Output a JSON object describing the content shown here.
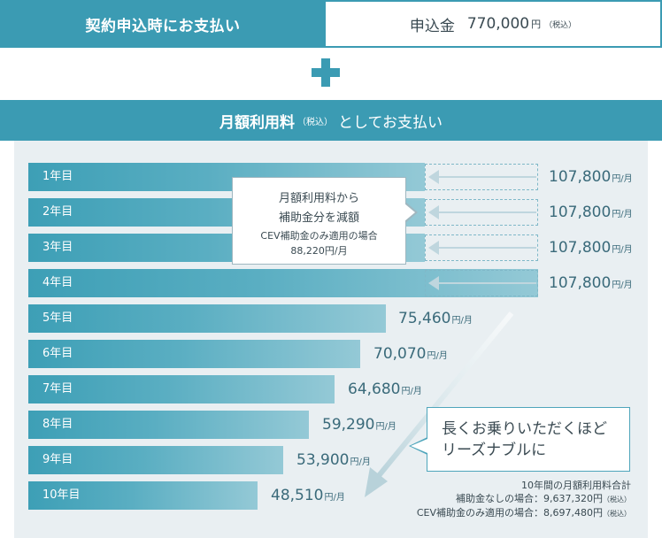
{
  "top": {
    "left_label": "契約申込時にお支払い",
    "right_label": "申込金",
    "right_amount": "770,000",
    "right_unit": "円",
    "right_tax": "（税込）"
  },
  "monthly": {
    "title_main": "月額利用料",
    "title_tax": "（税込）",
    "title_rest": "としてお支払い"
  },
  "callout": {
    "line1": "月額利用料から",
    "line2": "補助金分を減額",
    "line3": "CEV補助金のみ適用の場合",
    "line4": "88,220円/月"
  },
  "bubble": {
    "line1": "長くお乗りいただくほど",
    "line2": "リーズナブルに"
  },
  "totals": {
    "line1": "10年間の月額利用料合計",
    "line2": "補助金なしの場合：9,637,320円",
    "line2_tax": "（税込）",
    "line3": "CEV補助金のみ適用の場合：8,697,480円",
    "line3_tax": "（税込）"
  },
  "years": [
    {
      "label": "1年目",
      "price": "107,800",
      "unit": "円/月"
    },
    {
      "label": "2年目",
      "price": "107,800",
      "unit": "円/月"
    },
    {
      "label": "3年目",
      "price": "107,800",
      "unit": "円/月"
    },
    {
      "label": "4年目",
      "price": "107,800",
      "unit": "円/月"
    },
    {
      "label": "5年目",
      "price": "75,460",
      "unit": "円/月"
    },
    {
      "label": "6年目",
      "price": "70,070",
      "unit": "円/月"
    },
    {
      "label": "7年目",
      "price": "64,680",
      "unit": "円/月"
    },
    {
      "label": "8年目",
      "price": "59,290",
      "unit": "円/月"
    },
    {
      "label": "9年目",
      "price": "53,900",
      "unit": "円/月"
    },
    {
      "label": "10年目",
      "price": "48,510",
      "unit": "円/月"
    }
  ],
  "colors": {
    "accent": "#3b9bb3",
    "panel_bg": "#e9eff2"
  }
}
